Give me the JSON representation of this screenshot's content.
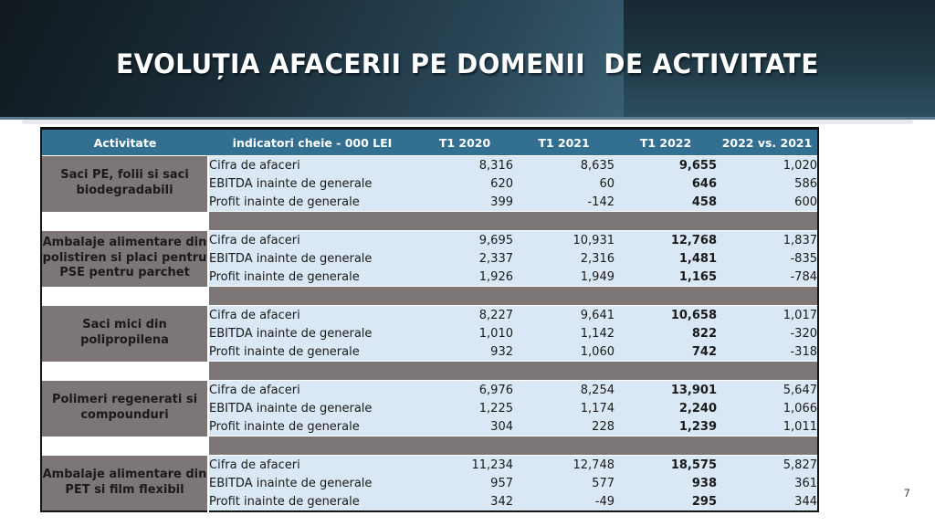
{
  "slide": {
    "title": "EVOLUȚIA AFACERII PE DOMENII  DE ACTIVITATE",
    "page_number": "7"
  },
  "colors": {
    "banner_dark": "#10191f",
    "banner_light": "#3a5f72",
    "table_header_bg": "#336f90",
    "activity_cell_bg": "#7c7676",
    "data_cell_bg": "#d9e8f4",
    "negative_value": "#e60000"
  },
  "table": {
    "columns": [
      "Activitate",
      "indicatori cheie - 000 LEI",
      "T1 2020",
      "T1 2021",
      "T1 2022",
      "2022 vs. 2021"
    ],
    "groups": [
      {
        "activity": "Saci PE, folii si saci biodegradabili",
        "rows": [
          {
            "indicator": "Cifra de afaceri",
            "values": [
              "8,316",
              "8,635",
              "9,655",
              "1,020"
            ]
          },
          {
            "indicator": "EBITDA inainte de generale",
            "values": [
              "620",
              "60",
              "646",
              "586"
            ]
          },
          {
            "indicator": "Profit inainte de generale",
            "values": [
              "399",
              "-142",
              "458",
              "600"
            ]
          }
        ]
      },
      {
        "activity": "Ambalaje alimentare din polistiren si placi pentru PSE pentru parchet",
        "rows": [
          {
            "indicator": "Cifra de afaceri",
            "values": [
              "9,695",
              "10,931",
              "12,768",
              "1,837"
            ]
          },
          {
            "indicator": "EBITDA inainte de generale",
            "values": [
              "2,337",
              "2,316",
              "1,481",
              "-835"
            ]
          },
          {
            "indicator": "Profit inainte de generale",
            "values": [
              "1,926",
              "1,949",
              "1,165",
              "-784"
            ]
          }
        ]
      },
      {
        "activity": "Saci mici din polipropilena",
        "rows": [
          {
            "indicator": "Cifra de afaceri",
            "values": [
              "8,227",
              "9,641",
              "10,658",
              "1,017"
            ]
          },
          {
            "indicator": "EBITDA inainte de generale",
            "values": [
              "1,010",
              "1,142",
              "822",
              "-320"
            ]
          },
          {
            "indicator": "Profit inainte de generale",
            "values": [
              "932",
              "1,060",
              "742",
              "-318"
            ]
          }
        ]
      },
      {
        "activity": "Polimeri regenerati si compounduri",
        "rows": [
          {
            "indicator": "Cifra de afaceri",
            "values": [
              "6,976",
              "8,254",
              "13,901",
              "5,647"
            ]
          },
          {
            "indicator": "EBITDA inainte de generale",
            "values": [
              "1,225",
              "1,174",
              "2,240",
              "1,066"
            ]
          },
          {
            "indicator": "Profit inainte de generale",
            "values": [
              "304",
              "228",
              "1,239",
              "1,011"
            ]
          }
        ]
      },
      {
        "activity": "Ambalaje alimentare din PET si film flexibil",
        "rows": [
          {
            "indicator": "Cifra de afaceri",
            "values": [
              "11,234",
              "12,748",
              "18,575",
              "5,827"
            ]
          },
          {
            "indicator": "EBITDA inainte de generale",
            "values": [
              "957",
              "577",
              "938",
              "361"
            ]
          },
          {
            "indicator": "Profit inainte de generale",
            "values": [
              "342",
              "-49",
              "295",
              "344"
            ]
          }
        ]
      }
    ]
  }
}
